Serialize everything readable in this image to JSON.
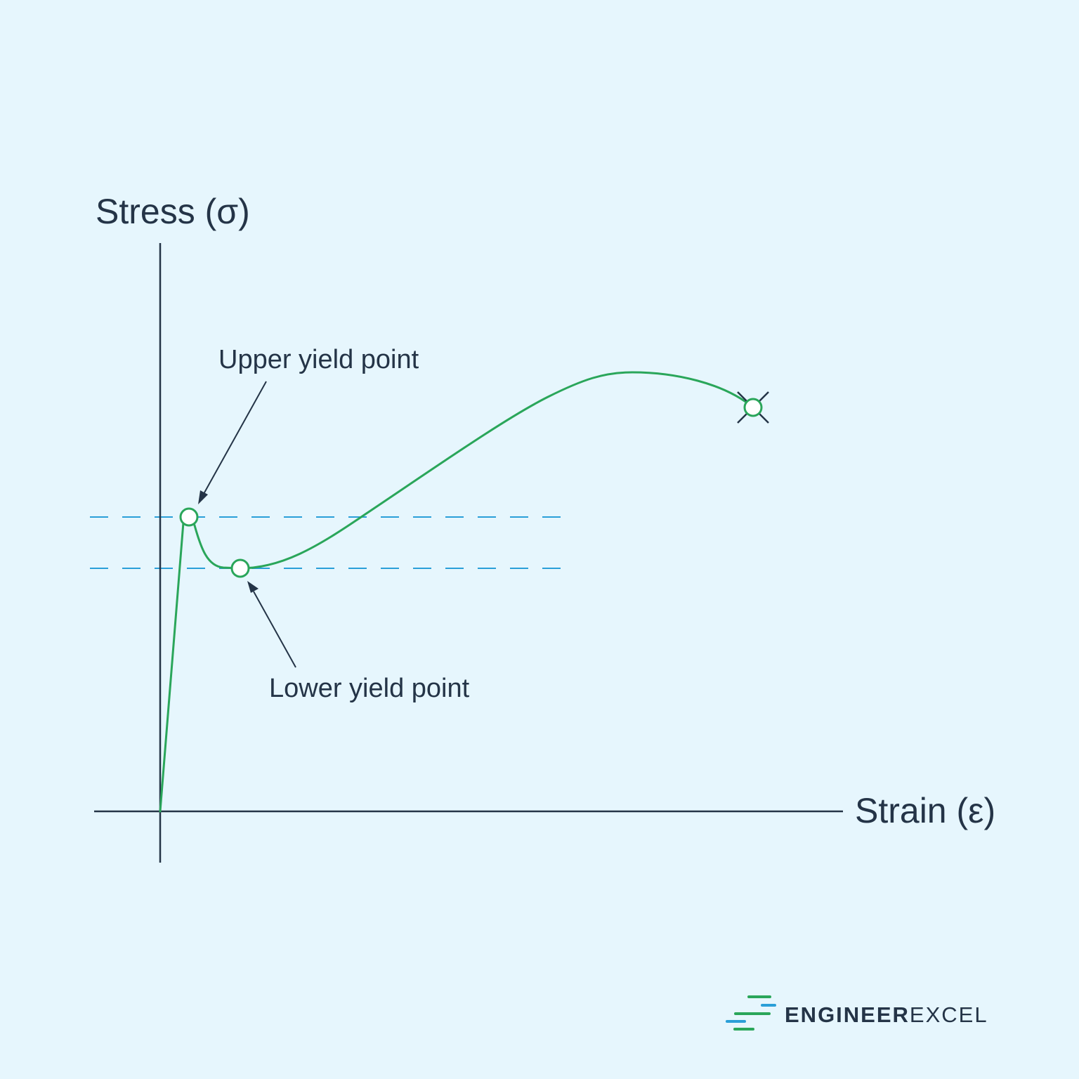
{
  "diagram": {
    "axes": {
      "y_label": "Stress (σ)",
      "x_label": "Strain (ε)"
    },
    "annotations": {
      "upper_yield": "Upper yield point",
      "lower_yield": "Lower yield point"
    },
    "markers": {
      "upper_yield_point": "circle",
      "lower_yield_point": "circle",
      "fracture_point": "circle-with-x"
    },
    "colors": {
      "background": "#e6f6fd",
      "curve": "#2aa65a",
      "reference_lines": "#2a9fd8",
      "axes": "#243447"
    }
  },
  "branding": {
    "logo_text_part1": "ENGINEER",
    "logo_text_part2": "EXCEL"
  }
}
